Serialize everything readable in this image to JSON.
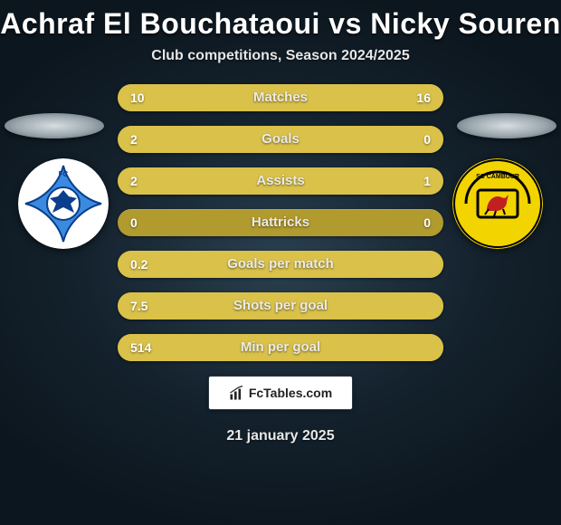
{
  "title": "Achraf El Bouchataoui vs Nicky Souren",
  "subtitle": "Club competitions, Season 2024/2025",
  "date": "21 january 2025",
  "footer_brand": "FcTables.com",
  "colors": {
    "bar_base": "#b19a2e",
    "bar_fill": "#d9c14a",
    "text": "#ffffff"
  },
  "badge_left": {
    "bg": "#ffffff",
    "accent_dark": "#0b3e8c",
    "accent_light": "#3a8be0"
  },
  "badge_right": {
    "bg": "#f2d400",
    "red": "#c22020",
    "black": "#000000"
  },
  "stats": [
    {
      "label": "Matches",
      "left_val": "10",
      "right_val": "16",
      "left_pct": 38,
      "right_pct": 62
    },
    {
      "label": "Goals",
      "left_val": "2",
      "right_val": "0",
      "left_pct": 100,
      "right_pct": 0
    },
    {
      "label": "Assists",
      "left_val": "2",
      "right_val": "1",
      "left_pct": 67,
      "right_pct": 33
    },
    {
      "label": "Hattricks",
      "left_val": "0",
      "right_val": "0",
      "left_pct": 0,
      "right_pct": 0
    },
    {
      "label": "Goals per match",
      "left_val": "0.2",
      "right_val": "",
      "left_pct": 100,
      "right_pct": 0
    },
    {
      "label": "Shots per goal",
      "left_val": "7.5",
      "right_val": "",
      "left_pct": 100,
      "right_pct": 0
    },
    {
      "label": "Min per goal",
      "left_val": "514",
      "right_val": "",
      "left_pct": 100,
      "right_pct": 0
    }
  ]
}
